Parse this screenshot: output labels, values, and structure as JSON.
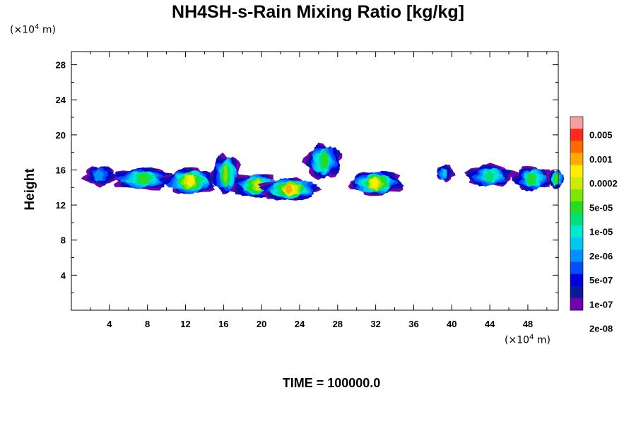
{
  "title": "NH4SH-s-Rain Mixing Ratio [kg/kg]",
  "time_label": "TIME = 100000.0",
  "y_unit": {
    "prefix": "(×10",
    "exp": "4",
    "suffix": " m)"
  },
  "x_unit": {
    "prefix": "(×10",
    "exp": "4",
    "suffix": " m)"
  },
  "chart_data": {
    "type": "heatmap",
    "title": "NH4SH-s-Rain Mixing Ratio [kg/kg]",
    "xlabel": "",
    "ylabel": "Height",
    "xlim": [
      0,
      51.2
    ],
    "ylim": [
      0,
      29.5
    ],
    "x_ticks": [
      "4",
      "8",
      "12",
      "16",
      "20",
      "24",
      "28",
      "32",
      "36",
      "40",
      "44",
      "48"
    ],
    "x_tick_values": [
      4,
      8,
      12,
      16,
      20,
      24,
      28,
      32,
      36,
      40,
      44,
      48
    ],
    "y_ticks": [
      "4",
      "8",
      "12",
      "16",
      "20",
      "24",
      "28"
    ],
    "y_tick_values": [
      4,
      8,
      12,
      16,
      20,
      24,
      28
    ],
    "colorbar": {
      "labels": [
        "0.005",
        "0.001",
        "0.0002",
        "5e-05",
        "1e-05",
        "2e-06",
        "5e-07",
        "1e-07",
        "2e-08"
      ],
      "colors": [
        "#f5a0a0",
        "#ff2a1e",
        "#ff6a00",
        "#ffaa00",
        "#ffee00",
        "#cceb00",
        "#7ee600",
        "#22dd22",
        "#00e07a",
        "#00e8d0",
        "#00c8f0",
        "#0090ff",
        "#0050ff",
        "#0000dd",
        "#0a1a9a",
        "#7000b0"
      ]
    },
    "clusters": [
      {
        "x": 3.0,
        "y": 15.4,
        "w": 3.4,
        "h": 2.2,
        "peak": 5
      },
      {
        "x": 7.5,
        "y": 15.0,
        "w": 6.5,
        "h": 2.4,
        "peak": 9
      },
      {
        "x": 12.5,
        "y": 14.7,
        "w": 5.5,
        "h": 2.8,
        "peak": 12
      },
      {
        "x": 16.3,
        "y": 15.5,
        "w": 3.0,
        "h": 4.2,
        "peak": 10
      },
      {
        "x": 19.5,
        "y": 14.2,
        "w": 5.0,
        "h": 2.6,
        "peak": 11
      },
      {
        "x": 23.0,
        "y": 13.8,
        "w": 6.0,
        "h": 2.4,
        "peak": 13
      },
      {
        "x": 26.5,
        "y": 17.0,
        "w": 3.8,
        "h": 3.8,
        "peak": 9
      },
      {
        "x": 32.0,
        "y": 14.5,
        "w": 5.5,
        "h": 2.6,
        "peak": 12
      },
      {
        "x": 39.2,
        "y": 15.6,
        "w": 1.8,
        "h": 1.8,
        "peak": 6
      },
      {
        "x": 44.0,
        "y": 15.3,
        "w": 5.0,
        "h": 2.4,
        "peak": 8
      },
      {
        "x": 48.5,
        "y": 15.0,
        "w": 4.0,
        "h": 2.6,
        "peak": 9
      },
      {
        "x": 51.0,
        "y": 15.0,
        "w": 1.6,
        "h": 2.0,
        "peak": 10
      }
    ]
  }
}
